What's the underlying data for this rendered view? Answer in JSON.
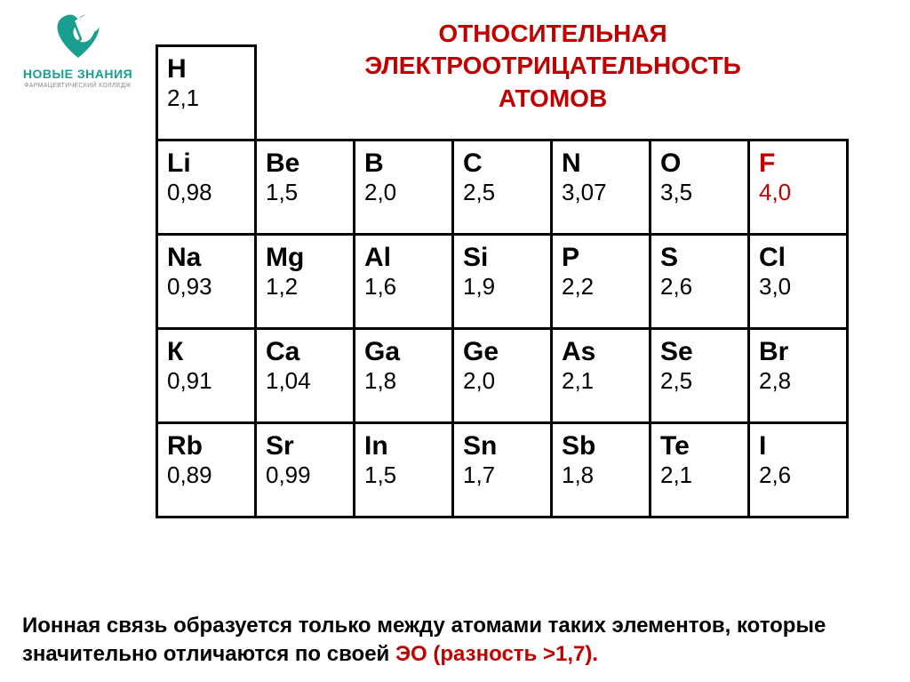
{
  "logo": {
    "main": "НОВЫЕ ЗНАНИЯ",
    "sub": "ФАРМАЦЕВТИЧЕСКИЙ КОЛЛЕДЖ",
    "heart_color": "#1a9e8f",
    "pill_white": "#ffffff"
  },
  "title": {
    "line1": "ОТНОСИТЕЛЬНАЯ",
    "line2": "ЭЛЕКТРООТРИЦАТЕЛЬНОСТЬ",
    "line3": "АТОМОВ",
    "color": "#c00000"
  },
  "table": {
    "type": "table",
    "cell_border_color": "#000000",
    "cell_border_width": 3,
    "symbol_fontsize": 30,
    "value_fontsize": 26,
    "highlight_color": "#c00000",
    "rows": [
      [
        {
          "symbol": "H",
          "value": "2,1"
        },
        {
          "blank": true
        },
        {
          "blank": true
        },
        {
          "blank": true
        },
        {
          "blank": true
        },
        {
          "blank": true
        },
        {
          "blank": true
        }
      ],
      [
        {
          "symbol": "Li",
          "value": "0,98"
        },
        {
          "symbol": "Be",
          "value": "1,5"
        },
        {
          "symbol": "B",
          "value": "2,0"
        },
        {
          "symbol": "C",
          "value": "2,5"
        },
        {
          "symbol": "N",
          "value": "3,07"
        },
        {
          "symbol": "O",
          "value": "3,5"
        },
        {
          "symbol": "F",
          "value": "4,0",
          "highlight": true
        }
      ],
      [
        {
          "symbol": "Na",
          "value": "0,93"
        },
        {
          "symbol": "Mg",
          "value": "1,2"
        },
        {
          "symbol": "Al",
          "value": "1,6"
        },
        {
          "symbol": "Si",
          "value": "1,9"
        },
        {
          "symbol": "P",
          "value": "2,2"
        },
        {
          "symbol": "S",
          "value": "2,6"
        },
        {
          "symbol": "Cl",
          "value": "3,0"
        }
      ],
      [
        {
          "symbol": "К",
          "value": "0,91"
        },
        {
          "symbol": "Ca",
          "value": "1,04"
        },
        {
          "symbol": "Ga",
          "value": "1,8"
        },
        {
          "symbol": "Ge",
          "value": "2,0"
        },
        {
          "symbol": "As",
          "value": "2,1"
        },
        {
          "symbol": "Se",
          "value": "2,5"
        },
        {
          "symbol": "Br",
          "value": "2,8"
        }
      ],
      [
        {
          "symbol": "Rb",
          "value": "0,89"
        },
        {
          "symbol": "Sr",
          "value": "0,99"
        },
        {
          "symbol": "In",
          "value": "1,5"
        },
        {
          "symbol": "Sn",
          "value": "1,7"
        },
        {
          "symbol": "Sb",
          "value": "1,8"
        },
        {
          "symbol": "Te",
          "value": "2,1"
        },
        {
          "symbol": "I",
          "value": "2,6"
        }
      ]
    ]
  },
  "footer": {
    "part1": "Ионная связь образуется только между атомами таких элементов, которые значительно отличаются по своей ",
    "em": "ЭО (разность >1,7).",
    "em_color": "#c00000"
  }
}
